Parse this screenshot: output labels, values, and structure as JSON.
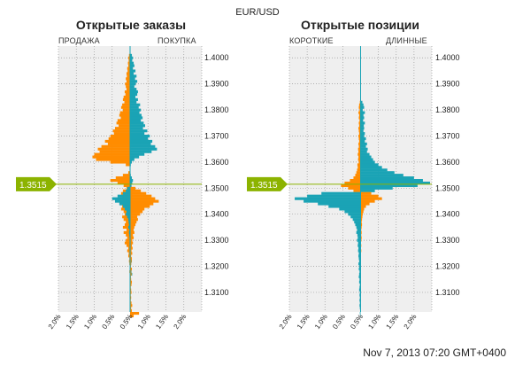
{
  "main_title": "EUR/USD",
  "timestamp": "Nov 7, 2013 07:20 GMT+0400",
  "current_price_label": "1.3515",
  "colors": {
    "orange": "#FF8C00",
    "teal": "#1AA3B5",
    "price_marker": "#8CB300",
    "price_line": "#8CB300",
    "panel_bg": "#EFEFEF",
    "grid": "#9a9a9a"
  },
  "panels": [
    {
      "title": "Открытые заказы",
      "left_label": "ПРОДАЖА",
      "right_label": "ПОКУПКА"
    },
    {
      "title": "Открытые позиции",
      "left_label": "КОРОТКИЕ",
      "right_label": "ДЛИННЫЕ"
    }
  ],
  "chart_data": [
    {
      "type": "bar",
      "title": "Открытые заказы",
      "orientation": "horizontal-diverging",
      "x_ticks": [
        "2.0%",
        "1.5%",
        "1.0%",
        "0.5%",
        "0.5%",
        "1.0%",
        "1.5%",
        "2.0%"
      ],
      "xlim": [
        -2.0,
        2.0
      ],
      "price_ticks": [
        "1.4000",
        "1.3900",
        "1.3800",
        "1.3700",
        "1.3600",
        "1.3500",
        "1.3400",
        "1.3300",
        "1.3200",
        "1.3100"
      ],
      "ylim": [
        1.3025,
        1.4045
      ],
      "current_price": 1.3515,
      "series": [
        {
          "name": "ПРОДАЖА",
          "side": "left",
          "color": "#FF8C00",
          "price_start": 1.402,
          "price_step": -0.001,
          "values": [
            0,
            0.03,
            0.05,
            0.04,
            0.06,
            0.05,
            0.08,
            0.07,
            0.1,
            0.09,
            0.12,
            0.1,
            0.14,
            0.12,
            0.1,
            0.15,
            0.13,
            0.18,
            0.2,
            0.16,
            0.22,
            0.25,
            0.2,
            0.28,
            0.3,
            0.26,
            0.35,
            0.38,
            0.32,
            0.42,
            0.48,
            0.45,
            0.55,
            0.6,
            0.7,
            0.62,
            0.8,
            0.9,
            0.85,
            1.0,
            1.05,
            0.95,
            0.55,
            0.12,
            0,
            0,
            0.05,
            0.2,
            0.4,
            0.55,
            0.35,
            0.18,
            0.1,
            0.2,
            0.25,
            0.18,
            0.22,
            0.2,
            0.28,
            0.22,
            0.25,
            0.18,
            0.15,
            0.22,
            0.18,
            0.12,
            0.15,
            0.2,
            0.1,
            0.18,
            0.12,
            0.08,
            0.12,
            0.15,
            0.1,
            0.05,
            0.08,
            0.04,
            0.05,
            0.02,
            0.03,
            0.02,
            0,
            0,
            0.02,
            0.01,
            0,
            0,
            0,
            0,
            0,
            0,
            0,
            0,
            0,
            0,
            0,
            0,
            0,
            0
          ]
        },
        {
          "name": "ПОКУПКА",
          "side": "right",
          "color": "#1AA3B5",
          "price_start": 1.402,
          "price_step": -0.001,
          "values": [
            0,
            0.05,
            0.08,
            0.06,
            0.1,
            0.12,
            0.08,
            0.15,
            0.1,
            0.18,
            0.14,
            0.2,
            0.16,
            0.12,
            0.18,
            0.22,
            0.2,
            0.15,
            0.22,
            0.18,
            0.28,
            0.24,
            0.3,
            0.26,
            0.32,
            0.35,
            0.3,
            0.38,
            0.42,
            0.36,
            0.48,
            0.4,
            0.55,
            0.5,
            0.62,
            0.58,
            0.7,
            0.75,
            0.6,
            0.4,
            0.25,
            0.12,
            0.05,
            0.02,
            0,
            0,
            0.01,
            0.02,
            0.05,
            0.08,
            0.06,
            0.04,
            0.05,
            0.03,
            0.06,
            0.04,
            0.05,
            0.03,
            0.04,
            0.02,
            0.03,
            0.05,
            0.02,
            0.04,
            0.03,
            0.02,
            0.03,
            0.02,
            0.05,
            0.03,
            0.04,
            0.02,
            0.03,
            0.02,
            0.04,
            0.03,
            0.02,
            0.03,
            0.02,
            0.04,
            0.05,
            0.03,
            0.02,
            0.03,
            0.04,
            0.06,
            0.02,
            0,
            0,
            0,
            0,
            0,
            0,
            0,
            0,
            0,
            0,
            0,
            0,
            0
          ]
        },
        {
          "name": "ПРОДАЖА-below",
          "side": "left",
          "color": "#1AA3B5",
          "price_start": 1.35,
          "price_step": -0.001,
          "values": [
            0.08,
            0.12,
            0.2,
            0.35,
            0.5,
            0.42,
            0.3,
            0.2,
            0.15,
            0.1,
            0.12,
            0.08,
            0.05,
            0.04,
            0.03,
            0.05,
            0.02,
            0.03,
            0.02,
            0.01,
            0,
            0,
            0,
            0,
            0,
            0,
            0,
            0,
            0,
            0
          ]
        },
        {
          "name": "ПОКУПКА-below",
          "side": "right",
          "color": "#FF8C00",
          "price_start": 1.35,
          "price_step": -0.001,
          "values": [
            0.15,
            0.3,
            0.45,
            0.6,
            0.7,
            0.8,
            0.65,
            0.55,
            0.4,
            0.35,
            0.28,
            0.2,
            0.22,
            0.18,
            0.15,
            0.12,
            0.1,
            0.12,
            0.08,
            0.1,
            0.06,
            0.08,
            0.05,
            0.07,
            0.04,
            0.06,
            0.03,
            0.05,
            0.04,
            0.03,
            0.02,
            0.05,
            0.03,
            0.04,
            0.02,
            0.03,
            0.05,
            0.04,
            0.02,
            0.03,
            0.04,
            0.02,
            0.03,
            0.02,
            0.04,
            0.06,
            0.03,
            0.05,
            0.25,
            0.1
          ]
        }
      ]
    },
    {
      "type": "bar",
      "title": "Открытые позиции",
      "orientation": "horizontal-diverging",
      "x_ticks": [
        "2.0%",
        "1.5%",
        "1.0%",
        "0.5%",
        "0.5%",
        "1.0%",
        "1.5%",
        "2.0%"
      ],
      "xlim": [
        -2.0,
        2.0
      ],
      "price_ticks": [
        "1.4000",
        "1.3900",
        "1.3800",
        "1.3700",
        "1.3600",
        "1.3500",
        "1.3400",
        "1.3300",
        "1.3200",
        "1.3100"
      ],
      "ylim": [
        1.3025,
        1.4045
      ],
      "current_price": 1.3515,
      "series": [
        {
          "name": "КОРОТКИЕ",
          "side": "left",
          "color": "#FF8C00",
          "price_start": 1.383,
          "price_step": -0.001,
          "values": [
            0.02,
            0.04,
            0.05,
            0.03,
            0.06,
            0.04,
            0.05,
            0.03,
            0.05,
            0.04,
            0.06,
            0.05,
            0.04,
            0.06,
            0.05,
            0.04,
            0.06,
            0.05,
            0.07,
            0.06,
            0.08,
            0.06,
            0.07,
            0.05,
            0.09,
            0.08,
            0.1,
            0.12,
            0.15,
            0.2,
            0.3,
            0.45,
            0.55,
            0.35,
            0.2
          ]
        },
        {
          "name": "ДЛИННЫЕ",
          "side": "right",
          "color": "#1AA3B5",
          "price_start": 1.383,
          "price_step": -0.001,
          "values": [
            0.05,
            0.08,
            0.1,
            0.06,
            0.12,
            0.08,
            0.1,
            0.07,
            0.12,
            0.09,
            0.1,
            0.08,
            0.12,
            0.1,
            0.15,
            0.12,
            0.18,
            0.15,
            0.2,
            0.18,
            0.25,
            0.3,
            0.35,
            0.4,
            0.5,
            0.6,
            0.75,
            0.95,
            1.2,
            1.5,
            1.75,
            1.95,
            1.6,
            0.9,
            0.4
          ]
        },
        {
          "name": "КОРОТКИЕ-below",
          "side": "left",
          "color": "#1AA3B5",
          "price_start": 1.348,
          "price_step": -0.001,
          "values": [
            1.1,
            1.5,
            1.85,
            1.6,
            1.2,
            0.9,
            0.6,
            0.45,
            0.35,
            0.28,
            0.22,
            0.18,
            0.15,
            0.12,
            0.1,
            0.12,
            0.09,
            0.08,
            0.1,
            0.07,
            0.08,
            0.06,
            0.07,
            0.05,
            0.06,
            0.05,
            0.04,
            0.06,
            0.04,
            0.05,
            0.03,
            0.04,
            0.05,
            0.03,
            0.04,
            0.02,
            0.03,
            0.04,
            0.02,
            0.03,
            0.02,
            0.03,
            0.02,
            0.03,
            0.02,
            0.01,
            0.02,
            0.01
          ]
        },
        {
          "name": "ДЛИННЫЕ-below",
          "side": "right",
          "color": "#FF8C00",
          "price_start": 1.348,
          "price_step": -0.001,
          "values": [
            0.3,
            0.5,
            0.6,
            0.4,
            0.25,
            0.15,
            0.1,
            0.08,
            0.06,
            0.05,
            0.04,
            0.03,
            0.04,
            0.03,
            0.02,
            0.03,
            0.02,
            0.03,
            0.02,
            0.01,
            0.02,
            0.01,
            0.02,
            0.01,
            0.01,
            0.01,
            0.01,
            0.01,
            0.01,
            0,
            0,
            0,
            0,
            0,
            0,
            0,
            0,
            0,
            0,
            0,
            0,
            0,
            0,
            0,
            0,
            0,
            0,
            0
          ]
        }
      ]
    }
  ]
}
